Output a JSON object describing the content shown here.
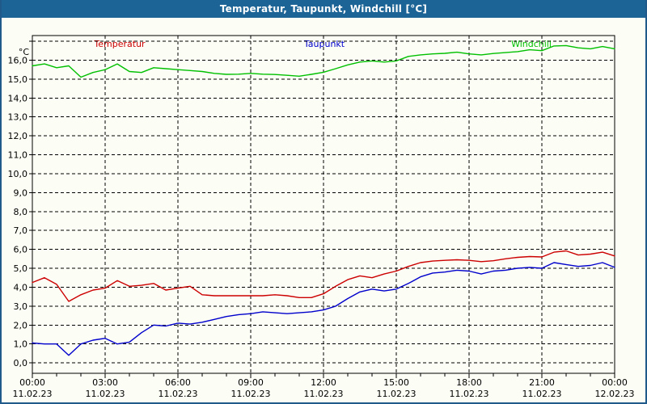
{
  "window_title": "Temperatur, Taupunkt, Windchill [°C]",
  "chart_data": {
    "type": "line",
    "title": "Temperatur, Taupunkt, Windchill [°C]",
    "ylabel": "°C",
    "xlabel": "",
    "grid": "dashed",
    "legend_position": "top",
    "xlim": [
      0,
      24
    ],
    "ylim": [
      -0.55,
      17.3
    ],
    "x_hours": [
      0,
      0.5,
      1,
      1.5,
      2,
      2.5,
      3,
      3.5,
      4,
      4.5,
      5,
      5.5,
      6,
      6.5,
      7,
      7.5,
      8,
      8.5,
      9,
      9.5,
      10,
      10.5,
      11,
      11.5,
      12,
      12.5,
      13,
      13.5,
      14,
      14.5,
      15,
      15.5,
      16,
      16.5,
      17,
      17.5,
      18,
      18.5,
      19,
      19.5,
      20,
      20.5,
      21,
      21.5,
      22,
      22.5,
      23,
      23.5,
      24
    ],
    "series": [
      {
        "name": "Temperatur",
        "color": "#cc0000",
        "values": [
          4.25,
          4.5,
          4.15,
          3.25,
          3.6,
          3.85,
          3.95,
          4.35,
          4.05,
          4.1,
          4.2,
          3.85,
          3.95,
          4.05,
          3.6,
          3.55,
          3.55,
          3.55,
          3.55,
          3.55,
          3.6,
          3.55,
          3.45,
          3.45,
          3.65,
          4.05,
          4.4,
          4.6,
          4.5,
          4.7,
          4.85,
          5.1,
          5.3,
          5.38,
          5.42,
          5.45,
          5.42,
          5.35,
          5.4,
          5.5,
          5.58,
          5.62,
          5.6,
          5.85,
          5.92,
          5.7,
          5.75,
          5.85,
          5.65
        ]
      },
      {
        "name": "Taupunkt",
        "color": "#0000cc",
        "values": [
          1.05,
          1.0,
          1.0,
          0.4,
          1.0,
          1.2,
          1.3,
          1.0,
          1.1,
          1.6,
          2.0,
          1.95,
          2.1,
          2.05,
          2.15,
          2.3,
          2.45,
          2.55,
          2.6,
          2.7,
          2.65,
          2.6,
          2.65,
          2.7,
          2.8,
          3.0,
          3.4,
          3.75,
          3.9,
          3.8,
          3.9,
          4.2,
          4.55,
          4.75,
          4.8,
          4.9,
          4.85,
          4.7,
          4.85,
          4.9,
          5.0,
          5.05,
          5.0,
          5.3,
          5.2,
          5.1,
          5.15,
          5.3,
          5.05
        ]
      },
      {
        "name": "Windchill",
        "color": "#00c000",
        "values": [
          15.7,
          15.8,
          15.6,
          15.7,
          15.1,
          15.35,
          15.5,
          15.8,
          15.4,
          15.35,
          15.6,
          15.55,
          15.5,
          15.45,
          15.4,
          15.3,
          15.25,
          15.26,
          15.3,
          15.26,
          15.24,
          15.2,
          15.15,
          15.25,
          15.36,
          15.55,
          15.75,
          15.9,
          15.96,
          15.9,
          15.96,
          16.2,
          16.28,
          16.33,
          16.36,
          16.42,
          16.33,
          16.28,
          16.35,
          16.4,
          16.45,
          16.55,
          16.5,
          16.75,
          16.77,
          16.65,
          16.6,
          16.72,
          16.6
        ]
      }
    ],
    "y_grid_values": [
      0,
      1,
      2,
      3,
      4,
      5,
      6,
      7,
      8,
      9,
      10,
      11,
      12,
      13,
      14,
      15,
      16,
      17
    ],
    "y_tick_labels": [
      "0,0",
      "1,0",
      "2,0",
      "3,0",
      "4,0",
      "5,0",
      "6,0",
      "7,0",
      "8,0",
      "9,0",
      "10,0",
      "11,0",
      "12,0",
      "13,0",
      "14,0",
      "15,0",
      "16,0"
    ],
    "x_minor_tick_every_hours": 1,
    "x_major_ticks": [
      {
        "hour": 0,
        "time": "00:00",
        "date": "11.02.23"
      },
      {
        "hour": 3,
        "time": "03:00",
        "date": "11.02.23"
      },
      {
        "hour": 6,
        "time": "06:00",
        "date": "11.02.23"
      },
      {
        "hour": 9,
        "time": "09:00",
        "date": "11.02.23"
      },
      {
        "hour": 12,
        "time": "12:00",
        "date": "11.02.23"
      },
      {
        "hour": 15,
        "time": "15:00",
        "date": "11.02.23"
      },
      {
        "hour": 18,
        "time": "18:00",
        "date": "11.02.23"
      },
      {
        "hour": 21,
        "time": "21:00",
        "date": "11.02.23"
      },
      {
        "hour": 24,
        "time": "00:00",
        "date": "12.02.23"
      }
    ]
  },
  "colors": {
    "titlebar": "#1d6496",
    "border": "#1f5a8a",
    "background": "#fcfdf5",
    "frame": "#000000",
    "grid": "#000000"
  }
}
